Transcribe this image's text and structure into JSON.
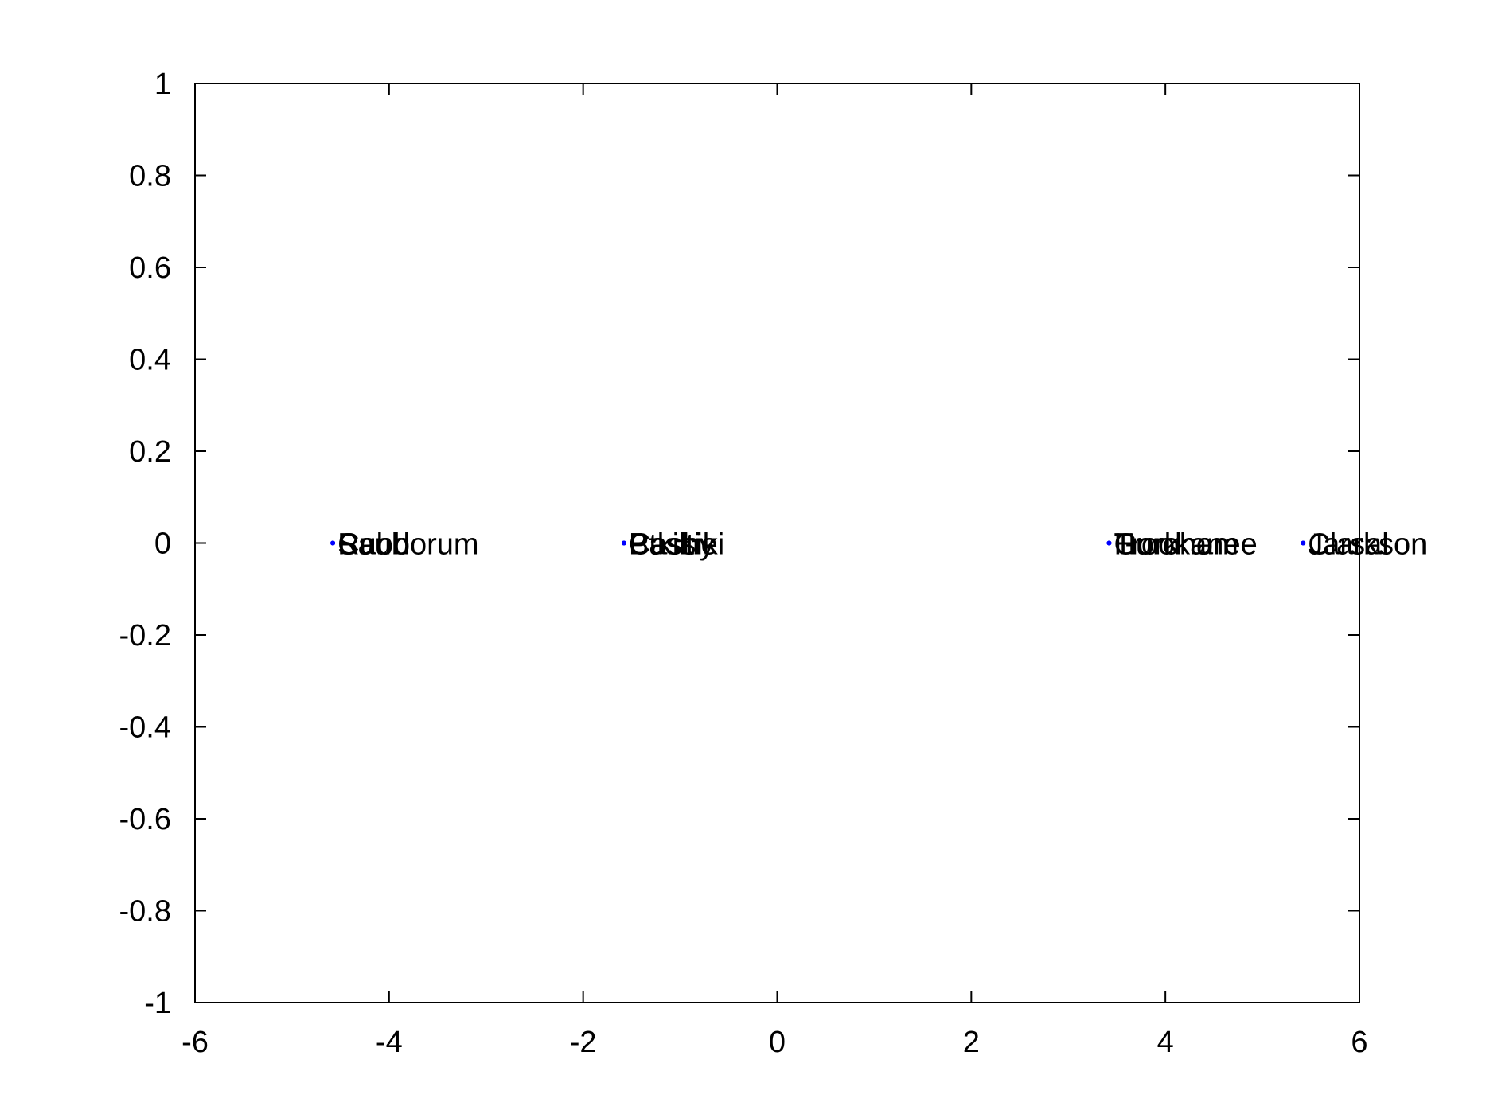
{
  "chart_data": {
    "type": "scatter",
    "title": "",
    "xlabel": "",
    "ylabel": "",
    "xlim": [
      -6,
      6
    ],
    "ylim": [
      -1,
      1
    ],
    "xticks": [
      -6,
      -4,
      -2,
      0,
      2,
      4,
      6
    ],
    "yticks": [
      -1,
      -0.8,
      -0.6,
      -0.4,
      -0.2,
      0,
      0.2,
      0.4,
      0.6,
      0.8,
      1
    ],
    "xtick_labels": [
      "-6",
      "-4",
      "-2",
      "0",
      "2",
      "4",
      "6"
    ],
    "ytick_labels": [
      "-1",
      "-0.8",
      "-0.6",
      "-0.4",
      "-0.2",
      "0",
      "0.2",
      "0.4",
      "0.6",
      "0.8",
      "1"
    ],
    "grid": false,
    "marker_color": "#0000ff",
    "points": [
      {
        "x": -4.58,
        "y": 0,
        "label": "Rabdorum"
      },
      {
        "x": -4.58,
        "y": 0,
        "label": "Saul"
      },
      {
        "x": -4.58,
        "y": 0,
        "label": "Cuob"
      },
      {
        "x": -1.58,
        "y": 0,
        "label": "Ptkiltie"
      },
      {
        "x": -1.58,
        "y": 0,
        "label": "Bassiki"
      },
      {
        "x": -1.58,
        "y": 0,
        "label": "Cashy"
      },
      {
        "x": 3.42,
        "y": 0,
        "label": "Trookanee"
      },
      {
        "x": 3.42,
        "y": 0,
        "label": "Huroham"
      },
      {
        "x": 3.42,
        "y": 0,
        "label": "Gorkhor"
      },
      {
        "x": 5.42,
        "y": 0,
        "label": "Clarkson"
      },
      {
        "x": 5.42,
        "y": 0,
        "label": "Jarsal"
      }
    ]
  }
}
